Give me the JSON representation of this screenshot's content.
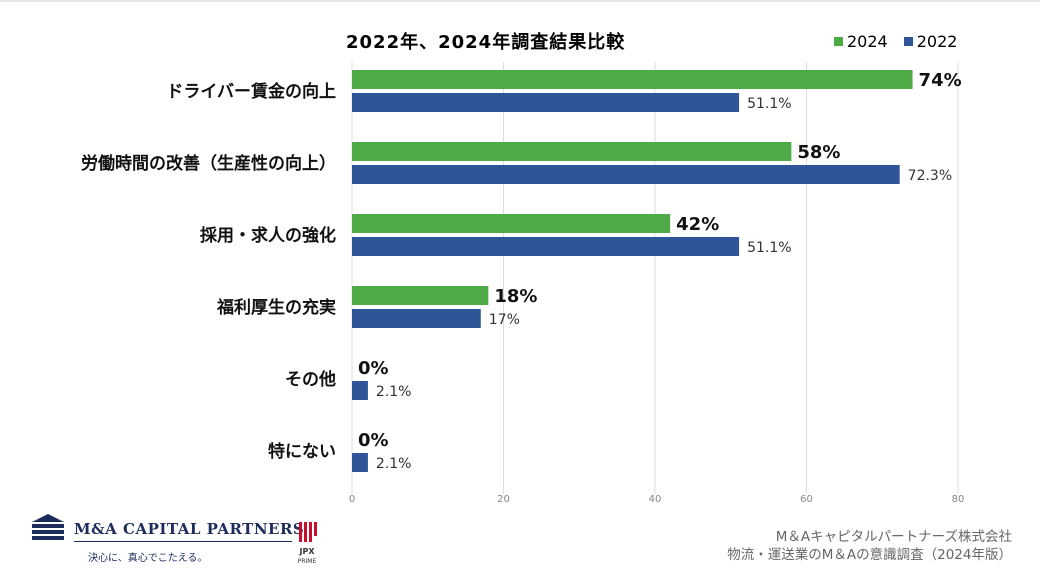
{
  "chart_data": {
    "type": "bar",
    "orientation": "horizontal",
    "title": "2022年、2024年調査結果比較",
    "categories": [
      "ドライバー賃金の向上",
      "労働時間の改善（生産性の向上）",
      "採用・求人の強化",
      "福利厚生の充実",
      "その他",
      "特にない"
    ],
    "series": [
      {
        "name": "2024",
        "color": "#4eaa45",
        "values": [
          74,
          58,
          42,
          18,
          0,
          0
        ],
        "labels": [
          "74%",
          "58%",
          "42%",
          "18%",
          "0%",
          "0%"
        ]
      },
      {
        "name": "2022",
        "color": "#2e5597",
        "values": [
          51.1,
          72.3,
          51.1,
          17,
          2.1,
          2.1
        ],
        "labels": [
          "51.1%",
          "72.3%",
          "51.1%",
          "17%",
          "2.1%",
          "2.1%"
        ]
      }
    ],
    "xlim": [
      0,
      80
    ],
    "xticks": [
      "0",
      "20",
      "40",
      "60",
      "80"
    ],
    "grid": true,
    "legend_position": "top-right"
  },
  "footer": {
    "brand_name": "M&A CAPITAL PARTNERS",
    "tagline": "決心に、真心でこたえる。",
    "jpx_label": "JPX",
    "jpx_sub": "PRIME",
    "source_line1": "M＆Aキャピタルパートナーズ株式会社",
    "source_line2": "物流・運送業のM＆Aの意識調査（2024年版）"
  }
}
